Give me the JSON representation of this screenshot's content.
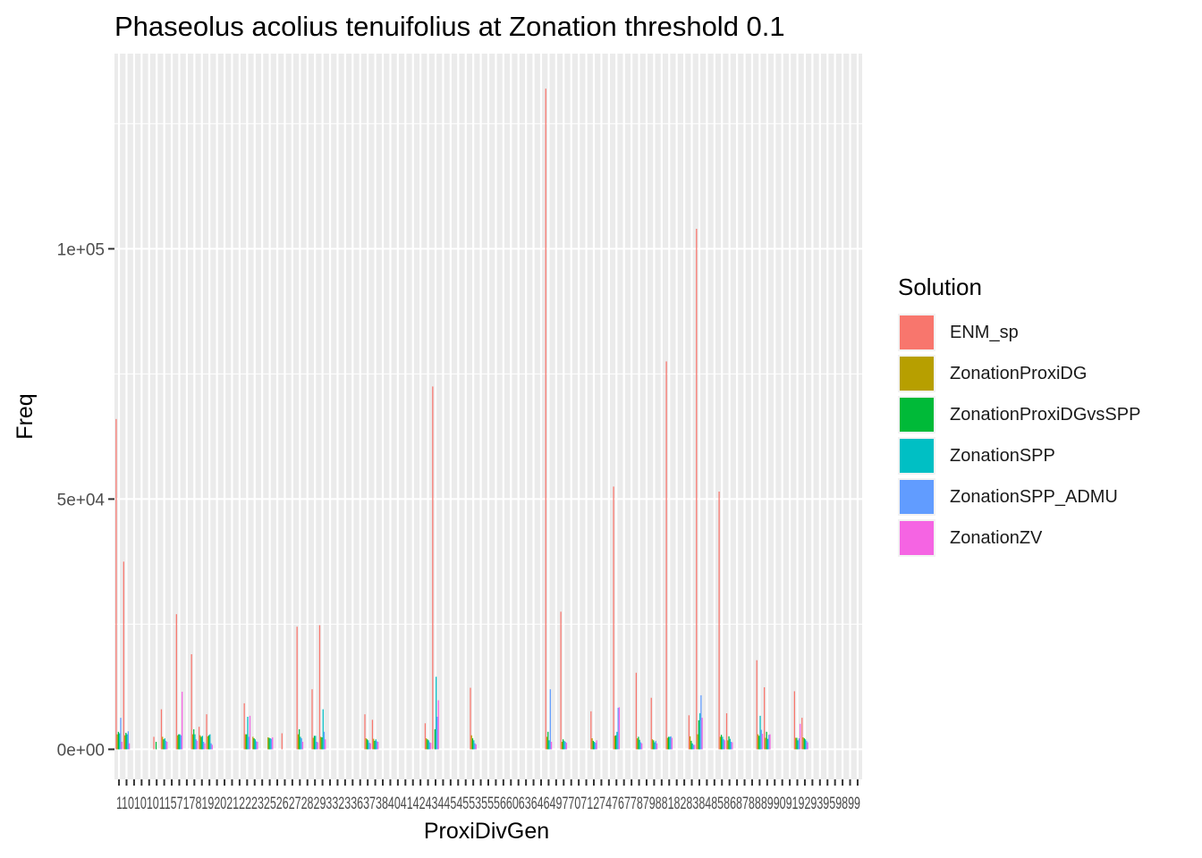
{
  "chart_data": {
    "type": "bar",
    "title": "Phaseolus acolius tenuifolius at Zonation threshold 0.1",
    "xlabel": "ProxiDivGen",
    "ylabel": "Freq",
    "ylim": [
      -6000,
      139000
    ],
    "yticks": [
      0,
      50000,
      100000
    ],
    "ytick_labels": [
      "0e+00",
      "5e+04",
      "1e+05"
    ],
    "x_tick_labels": [
      "1",
      "10",
      "100",
      "101",
      "102",
      "11",
      "15",
      "16",
      "17",
      "18",
      "19",
      "2",
      "20",
      "21",
      "22",
      "23",
      "24",
      "25",
      "26",
      "27",
      "28",
      "29",
      "3",
      "30",
      "31",
      "32",
      "33",
      "34",
      "35",
      "36",
      "37",
      "38",
      "39",
      "4",
      "40",
      "41",
      "42",
      "43",
      "44",
      "45",
      "46",
      "47",
      "48",
      "49",
      "5",
      "50",
      "51",
      "52",
      "53",
      "54",
      "55",
      "56",
      "57",
      "58",
      "59",
      "6",
      "60",
      "61",
      "62",
      "63",
      "64",
      "65",
      "66",
      "67",
      "68",
      "69",
      "7",
      "70",
      "71",
      "72",
      "73",
      "74",
      "75",
      "76",
      "77",
      "78",
      "79",
      "8",
      "80",
      "81",
      "82",
      "83",
      "84",
      "85",
      "86",
      "87",
      "88",
      "89",
      "9",
      "90",
      "91",
      "92",
      "93",
      "94",
      "95",
      "96",
      "97",
      "98",
      "99"
    ],
    "x_tick_text": "110101011571781920212223252627282933233637384041424344545535556606364649770712747677879881828384858687888990919293959899",
    "legend_title": "Solution",
    "legend_position": "right",
    "grid": true,
    "colors": [
      "#F8766D",
      "#B79F00",
      "#00BA38",
      "#00BFC4",
      "#619CFF",
      "#F564E3"
    ],
    "series": [
      {
        "name": "ENM_sp",
        "values": [
          66000,
          37500,
          0,
          0,
          0,
          2500,
          8000,
          0,
          27000,
          0,
          19000,
          4500,
          7000,
          0,
          0,
          0,
          0,
          9200,
          0,
          0,
          0,
          0,
          3200,
          0,
          24500,
          0,
          12000,
          24800,
          0,
          0,
          0,
          0,
          0,
          7000,
          5900,
          0,
          0,
          0,
          0,
          0,
          0,
          5200,
          72500,
          0,
          0,
          0,
          0,
          12300,
          0,
          0,
          0,
          0,
          0,
          0,
          0,
          0,
          0,
          132000,
          0,
          27500,
          0,
          0,
          0,
          7600,
          0,
          0,
          52500,
          0,
          0,
          15300,
          0,
          10300,
          0,
          77500,
          0,
          0,
          6800,
          104000,
          0,
          0,
          51500,
          7200,
          0,
          0,
          0,
          17800,
          12400,
          0,
          0,
          0,
          11600,
          6300,
          0,
          0,
          0,
          0,
          0,
          0,
          0
        ]
      },
      {
        "name": "ZonationProxiDG",
        "values": [
          3000,
          2800,
          0,
          0,
          0,
          0,
          2500,
          0,
          2800,
          0,
          3000,
          2800,
          2600,
          0,
          0,
          0,
          0,
          3000,
          2500,
          0,
          2400,
          0,
          0,
          0,
          3000,
          0,
          2300,
          2500,
          0,
          0,
          0,
          0,
          0,
          2200,
          2100,
          0,
          0,
          0,
          0,
          0,
          0,
          2200,
          0,
          0,
          0,
          0,
          0,
          2800,
          0,
          0,
          0,
          0,
          0,
          0,
          0,
          0,
          0,
          2500,
          0,
          1500,
          0,
          0,
          0,
          2200,
          0,
          0,
          2700,
          0,
          0,
          2200,
          0,
          2000,
          0,
          2300,
          0,
          0,
          2600,
          3000,
          0,
          0,
          2500,
          1800,
          0,
          0,
          0,
          3000,
          2300,
          0,
          0,
          0,
          2300,
          2400,
          0,
          0,
          0,
          0,
          0,
          0,
          0
        ]
      },
      {
        "name": "ZonationProxiDGvsSPP",
        "values": [
          3500,
          3300,
          0,
          0,
          0,
          1500,
          2000,
          0,
          3000,
          0,
          4000,
          2500,
          2800,
          0,
          0,
          0,
          0,
          3000,
          2200,
          0,
          2300,
          0,
          0,
          0,
          4000,
          0,
          2700,
          2400,
          0,
          0,
          0,
          0,
          0,
          2000,
          1700,
          0,
          0,
          0,
          0,
          0,
          0,
          2000,
          4000,
          0,
          0,
          0,
          0,
          2200,
          0,
          0,
          0,
          0,
          0,
          0,
          0,
          0,
          0,
          3500,
          0,
          2000,
          0,
          0,
          0,
          1700,
          0,
          0,
          2800,
          0,
          0,
          2500,
          0,
          1800,
          0,
          2500,
          0,
          0,
          1700,
          5800,
          0,
          0,
          2900,
          2600,
          0,
          0,
          0,
          2700,
          3500,
          0,
          0,
          0,
          2300,
          2200,
          0,
          0,
          0,
          0,
          0,
          0,
          0
        ]
      },
      {
        "name": "ZonationSPP",
        "values": [
          3200,
          3000,
          0,
          0,
          0,
          0,
          2200,
          0,
          3000,
          0,
          3000,
          2700,
          3000,
          0,
          0,
          0,
          0,
          6500,
          2000,
          0,
          2200,
          0,
          0,
          0,
          2500,
          0,
          2700,
          8000,
          0,
          0,
          0,
          0,
          0,
          1800,
          2000,
          0,
          0,
          0,
          0,
          0,
          0,
          1800,
          14500,
          0,
          0,
          0,
          0,
          1800,
          0,
          0,
          0,
          0,
          0,
          0,
          0,
          0,
          0,
          1800,
          0,
          1700,
          0,
          0,
          0,
          1500,
          0,
          0,
          3500,
          0,
          0,
          1900,
          0,
          1400,
          0,
          2500,
          0,
          0,
          1200,
          7200,
          0,
          0,
          2500,
          2100,
          0,
          0,
          0,
          6700,
          2100,
          0,
          0,
          0,
          1800,
          2000,
          0,
          0,
          0,
          0,
          0,
          0,
          0
        ]
      },
      {
        "name": "ZonationSPP_ADMU",
        "values": [
          6300,
          3600,
          0,
          0,
          0,
          0,
          1700,
          0,
          2800,
          0,
          2000,
          1500,
          1200,
          0,
          0,
          0,
          0,
          2500,
          1600,
          0,
          2100,
          0,
          0,
          0,
          2200,
          0,
          1500,
          3500,
          0,
          0,
          0,
          0,
          0,
          1300,
          1600,
          0,
          0,
          0,
          0,
          0,
          0,
          1400,
          6500,
          0,
          0,
          0,
          0,
          1200,
          0,
          0,
          0,
          0,
          0,
          0,
          0,
          0,
          0,
          12000,
          0,
          1500,
          0,
          0,
          0,
          1300,
          0,
          0,
          8300,
          0,
          0,
          1400,
          0,
          1700,
          0,
          2600,
          0,
          0,
          900,
          10800,
          0,
          0,
          2000,
          1500,
          0,
          0,
          0,
          3900,
          2900,
          0,
          0,
          0,
          2200,
          1700,
          0,
          0,
          0,
          0,
          0,
          0,
          0
        ]
      },
      {
        "name": "ZonationZV",
        "values": [
          1500,
          1200,
          0,
          0,
          0,
          0,
          1500,
          0,
          11500,
          0,
          1700,
          1200,
          900,
          0,
          0,
          0,
          0,
          6700,
          1500,
          0,
          2400,
          0,
          0,
          0,
          1500,
          0,
          1400,
          2000,
          0,
          0,
          0,
          0,
          0,
          1200,
          1500,
          0,
          0,
          0,
          0,
          0,
          0,
          1300,
          9800,
          0,
          0,
          0,
          0,
          1000,
          0,
          0,
          0,
          0,
          0,
          0,
          0,
          0,
          0,
          1500,
          0,
          1300,
          0,
          0,
          0,
          1800,
          0,
          0,
          8400,
          0,
          0,
          1200,
          0,
          1200,
          0,
          2300,
          0,
          0,
          900,
          6300,
          0,
          0,
          1800,
          1400,
          0,
          0,
          0,
          3100,
          3000,
          0,
          0,
          0,
          5100,
          1400,
          0,
          0,
          0,
          0,
          0,
          0,
          0
        ]
      }
    ]
  }
}
